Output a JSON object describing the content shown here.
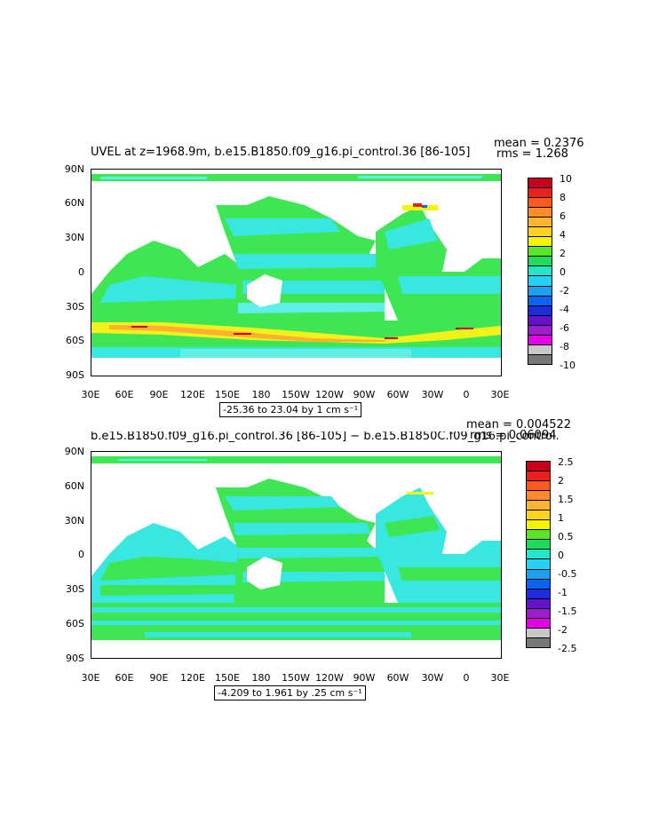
{
  "panels": [
    {
      "id": "top",
      "title": "UVEL at z=1968.9m, b.e15.B1850.f09_g16.pi_control.36 [86-105]",
      "mean_text": "mean = 0.2376",
      "rms_text": "rms = 1.268",
      "range_text": "-25.36 to 23.04 by 1 cm s⁻¹",
      "colorbar_labels": [
        "10",
        "8",
        "6",
        "4",
        "2",
        "0",
        "-2",
        "-4",
        "-6",
        "-8",
        "-10"
      ],
      "colorbar_colors": [
        "#c8001e",
        "#e8201e",
        "#fa5a1e",
        "#ff8c28",
        "#ffb432",
        "#ffd21e",
        "#f5f500",
        "#5ae628",
        "#1edc5a",
        "#23e6c8",
        "#23d2f5",
        "#1ea0f0",
        "#0a64f0",
        "#1e2ddc",
        "#6414c8",
        "#9b1ec8",
        "#e600e6",
        "#c8c8c8",
        "#787878"
      ]
    },
    {
      "id": "bottom",
      "title": "b.e15.B1850.f09_g16.pi_control.36 [86-105] − b.e15.B1850C.f09_g16.pi_control.",
      "mean_text": "mean = 0.004522",
      "rms_text": "rms = 0.06094",
      "range_text": "-4.209 to 1.961 by .25 cm s⁻¹",
      "colorbar_labels": [
        "2.5",
        "2",
        "1.5",
        "1",
        "0.5",
        "0",
        "-0.5",
        "-1",
        "-1.5",
        "-2",
        "-2.5"
      ],
      "colorbar_colors": [
        "#c8001e",
        "#e8201e",
        "#fa5a1e",
        "#ff8c28",
        "#ffb432",
        "#ffd21e",
        "#f5f500",
        "#5ae628",
        "#1edc5a",
        "#23e6c8",
        "#23d2f5",
        "#1ea0f0",
        "#0a64f0",
        "#1e2ddc",
        "#6414c8",
        "#9b1ec8",
        "#e600e6",
        "#c8c8c8",
        "#787878"
      ]
    }
  ],
  "axes": {
    "lat_labels": [
      "90N",
      "60N",
      "30N",
      "0",
      "30S",
      "60S",
      "90S"
    ],
    "lon_labels": [
      "30E",
      "60E",
      "90E",
      "120E",
      "150E",
      "180",
      "150W",
      "120W",
      "90W",
      "60W",
      "30W",
      "0",
      "30E"
    ]
  },
  "colors": {
    "ocean_green": "#3ee654",
    "ocean_cyan": "#38e8e0",
    "ocean_lightcyan": "#5ef0e6",
    "land": "#ffffff",
    "southern_yellow": "#f2f21a",
    "southern_orange": "#ffb030",
    "southern_red": "#d0001e"
  }
}
